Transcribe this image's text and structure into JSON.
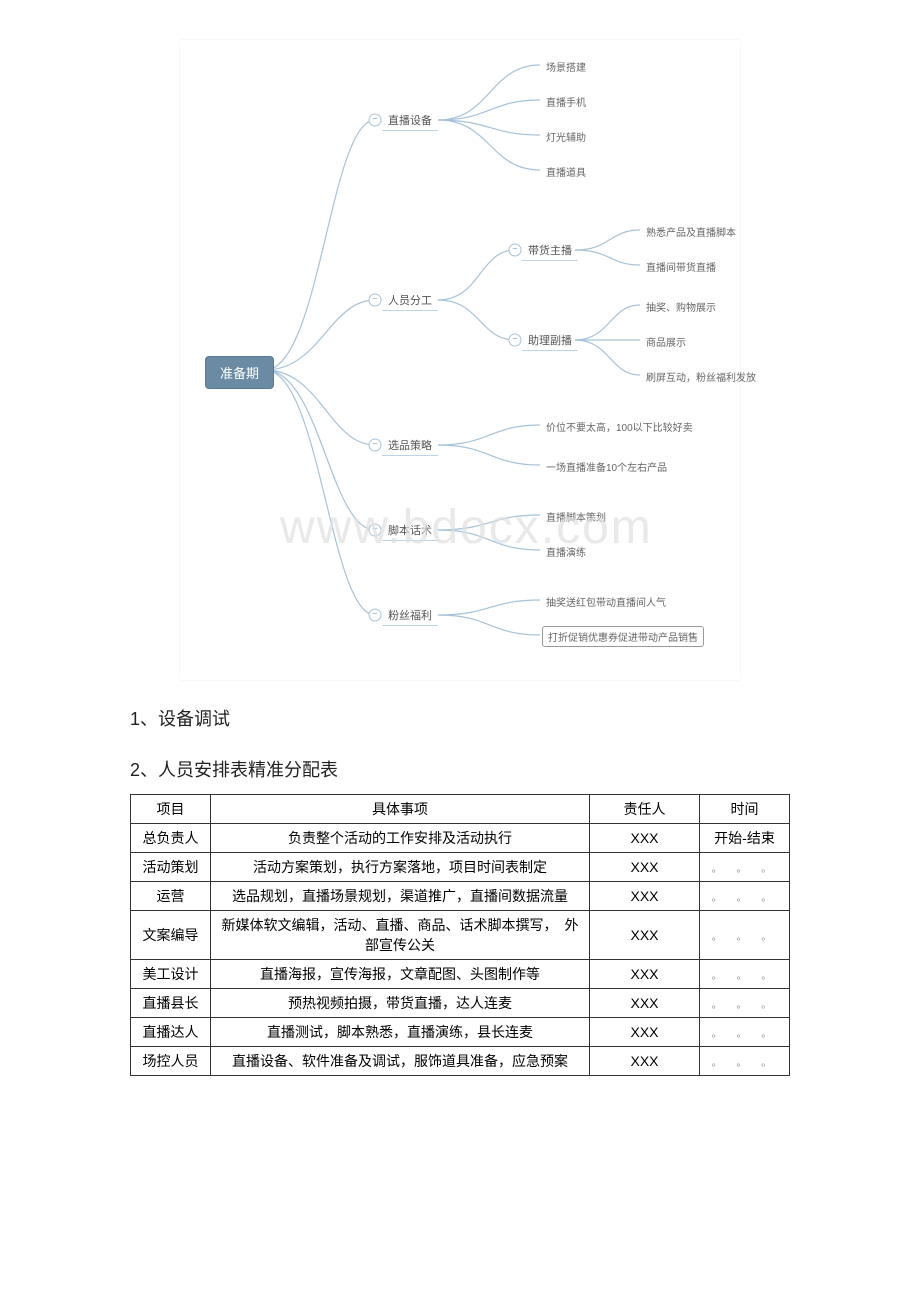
{
  "diagram": {
    "root": "准备期",
    "root_bg": "#6b8aa3",
    "root_fg": "#ffffff",
    "line_color": "#a7c2d8",
    "branches": [
      {
        "label": "直播设备",
        "leaves": [
          "场景搭建",
          "直播手机",
          "灯光辅助",
          "直播道具"
        ]
      },
      {
        "label": "人员分工",
        "sub": [
          {
            "label": "带货主播",
            "leaves": [
              "熟悉产品及直播脚本",
              "直播间带货直播"
            ]
          },
          {
            "label": "助理副播",
            "leaves": [
              "抽奖、购物展示",
              "商品展示",
              "刷屏互动，粉丝福利发放"
            ]
          }
        ]
      },
      {
        "label": "选品策略",
        "leaves": [
          "价位不要太高，100以下比较好卖",
          "一场直播准备10个左右产品"
        ]
      },
      {
        "label": "脚本话术",
        "leaves": [
          "直播脚本策划",
          "直播演练"
        ]
      },
      {
        "label": "粉丝福利",
        "leaves": [
          "抽奖送红包带动直播间人气",
          "打折促销优惠券促进带动产品销售"
        ]
      }
    ]
  },
  "watermark": "www.bdocx.com",
  "headings": {
    "h1": "1、设备调试",
    "h2": "2、人员安排表精准分配表"
  },
  "table": {
    "columns": [
      "项目",
      "具体事项",
      "责任人",
      "时间"
    ],
    "col_widths": [
      "80px",
      "auto",
      "110px",
      "90px"
    ],
    "dots": "。  。  。",
    "rows": [
      {
        "proj": "总负责人",
        "detail": "负责整个活动的工作安排及活动执行",
        "owner": "XXX",
        "time_type": "text",
        "time": "开始-结束"
      },
      {
        "proj": "活动策划",
        "detail": "活动方案策划，执行方案落地，项目时间表制定",
        "owner": "XXX",
        "time_type": "dots"
      },
      {
        "proj": "运营",
        "detail": "选品规划，直播场景规划，渠道推广，直播间数据流量",
        "owner": "XXX",
        "time_type": "dots"
      },
      {
        "proj": "文案编导",
        "detail": "新媒体软文编辑，活动、直播、商品、话术脚本撰写，　外部宣传公关",
        "owner": "XXX",
        "time_type": "dots"
      },
      {
        "proj": "美工设计",
        "detail": "直播海报，宣传海报，文章配图、头图制作等",
        "owner": "XXX",
        "time_type": "dots"
      },
      {
        "proj": "直播县长",
        "detail": "预热视频拍摄，带货直播，达人连麦",
        "owner": "XXX",
        "time_type": "dots"
      },
      {
        "proj": "直播达人",
        "detail": "直播测试，脚本熟悉，直播演练，县长连麦",
        "owner": "XXX",
        "time_type": "dots"
      },
      {
        "proj": "场控人员",
        "detail": "直播设备、软件准备及调试，服饰道具准备，应急预案",
        "owner": "XXX",
        "time_type": "dots"
      }
    ]
  }
}
